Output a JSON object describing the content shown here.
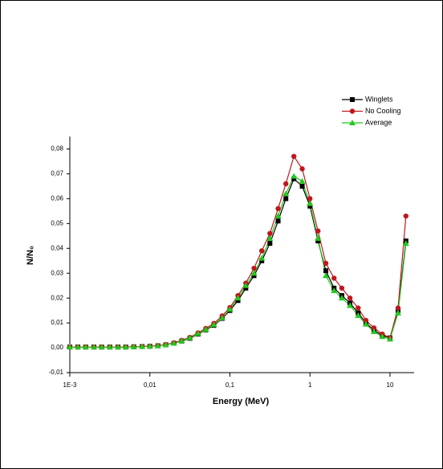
{
  "chart_data": {
    "type": "line",
    "x_label": "Energy (MeV)",
    "y_label": "N/N₀",
    "x": [
      0.001,
      0.00126,
      0.00158,
      0.002,
      0.0025,
      0.00316,
      0.004,
      0.005,
      0.0063,
      0.008,
      0.01,
      0.0126,
      0.0158,
      0.02,
      0.025,
      0.0316,
      0.04,
      0.05,
      0.063,
      0.08,
      0.1,
      0.126,
      0.158,
      0.2,
      0.25,
      0.316,
      0.4,
      0.5,
      0.63,
      0.8,
      1,
      1.26,
      1.58,
      2,
      2.5,
      3.16,
      4,
      5,
      6.3,
      8,
      10,
      12.6,
      15.8
    ],
    "series": [
      {
        "name": "Winglets",
        "color": "#000000",
        "marker": "square",
        "values": [
          0.0003,
          0.0003,
          0.0003,
          0.0003,
          0.0003,
          0.0003,
          0.0003,
          0.0003,
          0.0004,
          0.0005,
          0.0006,
          0.0008,
          0.0012,
          0.0018,
          0.0027,
          0.0038,
          0.0055,
          0.0072,
          0.009,
          0.0118,
          0.015,
          0.019,
          0.024,
          0.029,
          0.035,
          0.042,
          0.051,
          0.06,
          0.068,
          0.065,
          0.057,
          0.043,
          0.031,
          0.024,
          0.021,
          0.018,
          0.014,
          0.01,
          0.007,
          0.005,
          0.004,
          0.015,
          0.043
        ]
      },
      {
        "name": "No Cooling",
        "color": "#c0171e",
        "marker": "circle",
        "values": [
          0.0003,
          0.0003,
          0.0003,
          0.0003,
          0.0003,
          0.0003,
          0.0003,
          0.0003,
          0.0004,
          0.0005,
          0.0006,
          0.0009,
          0.0013,
          0.002,
          0.003,
          0.0042,
          0.006,
          0.0078,
          0.0098,
          0.0128,
          0.0162,
          0.021,
          0.026,
          0.032,
          0.039,
          0.046,
          0.056,
          0.066,
          0.077,
          0.072,
          0.06,
          0.047,
          0.034,
          0.028,
          0.024,
          0.02,
          0.016,
          0.011,
          0.008,
          0.0055,
          0.004,
          0.016,
          0.053
        ]
      },
      {
        "name": "Average",
        "color": "#22c81e",
        "marker": "triangle",
        "values": [
          0.0003,
          0.0003,
          0.0003,
          0.0003,
          0.0003,
          0.0003,
          0.0003,
          0.0003,
          0.0004,
          0.0005,
          0.0006,
          0.0008,
          0.0012,
          0.0018,
          0.0028,
          0.004,
          0.0057,
          0.0074,
          0.0093,
          0.012,
          0.0155,
          0.02,
          0.025,
          0.03,
          0.036,
          0.044,
          0.053,
          0.062,
          0.069,
          0.067,
          0.058,
          0.044,
          0.029,
          0.023,
          0.02,
          0.017,
          0.013,
          0.0095,
          0.0065,
          0.0045,
          0.0035,
          0.014,
          0.042
        ]
      }
    ],
    "xlog": true,
    "xlim": [
      0.001,
      20
    ],
    "xticks": [
      {
        "value": 0.001,
        "label": "1E-3"
      },
      {
        "value": 0.01,
        "label": "0,01"
      },
      {
        "value": 0.1,
        "label": "0,1"
      },
      1,
      10
    ],
    "ylim": [
      -0.01,
      0.085
    ],
    "yticks": [
      {
        "value": -0.01,
        "label": "-0,01"
      },
      {
        "value": 0,
        "label": "0,00"
      },
      {
        "value": 0.01,
        "label": "0,01"
      },
      {
        "value": 0.02,
        "label": "0,02"
      },
      {
        "value": 0.03,
        "label": "0,03"
      },
      {
        "value": 0.04,
        "label": "0,04"
      },
      {
        "value": 0.05,
        "label": "0,05"
      },
      {
        "value": 0.06,
        "label": "0,06"
      },
      {
        "value": 0.07,
        "label": "0,07"
      },
      {
        "value": 0.08,
        "label": "0,08"
      }
    ],
    "grid": false,
    "legend": "upper right"
  }
}
